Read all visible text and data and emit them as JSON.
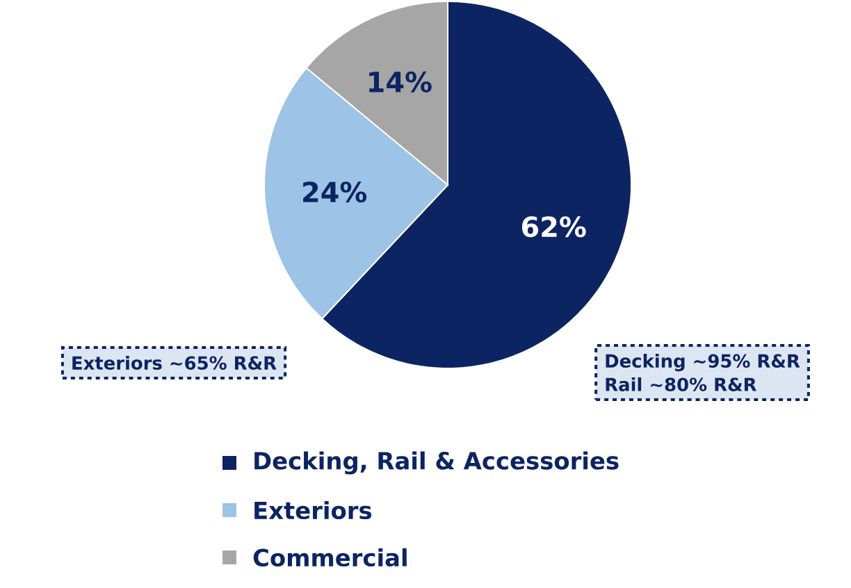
{
  "chart_data": {
    "type": "pie",
    "categories": [
      "Decking, Rail & Accessories",
      "Exteriors",
      "Commercial"
    ],
    "values": [
      62,
      24,
      14
    ],
    "colors": [
      "#0d2462",
      "#9dc3e6",
      "#a6a6a6"
    ],
    "value_labels": [
      "62%",
      "24%",
      "14%"
    ],
    "legend": "bottom",
    "annotations": [
      "Exteriors ~65% R&R",
      "Decking ~95% R&R",
      "Rail ~80% R&R"
    ]
  }
}
